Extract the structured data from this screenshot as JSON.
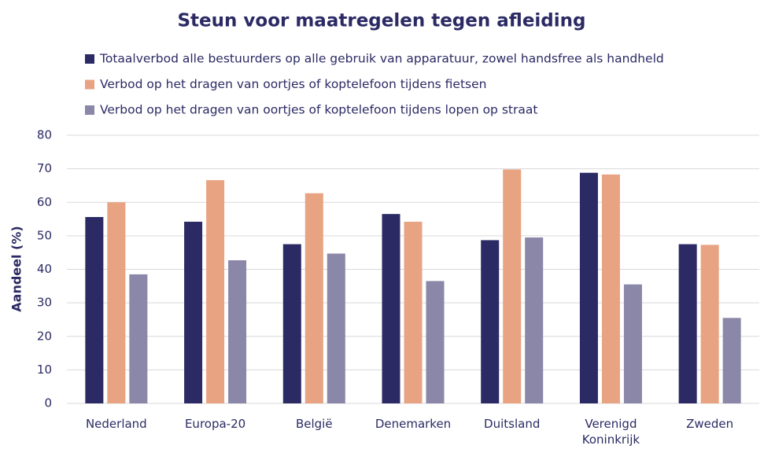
{
  "chart_data": {
    "type": "bar",
    "title": "Steun voor maatregelen tegen afleiding",
    "y_label": "Aandeel (%)",
    "categories": [
      "Nederland",
      "Europa-20",
      "België",
      "Denemarken",
      "Duitsland",
      "Verenigd Koninkrijk",
      "Zweden"
    ],
    "series": [
      {
        "name": "Totaalverbod alle bestuurders op alle gebruik van apparatuur, zowel handsfree als handheld",
        "color": "#2b2a64",
        "values": [
          55.6,
          54.2,
          47.5,
          56.5,
          48.7,
          68.8,
          47.5
        ]
      },
      {
        "name": "Verbod op het dragen van oortjes of koptelefoon tijdens fietsen",
        "color": "#e8a382",
        "values": [
          60,
          66.6,
          62.7,
          54.2,
          69.8,
          68.3,
          47.3
        ]
      },
      {
        "name": "Verbod op het dragen van oortjes of koptelefoon tijdens lopen op straat",
        "color": "#8a87a8",
        "values": [
          38.5,
          42.7,
          44.7,
          36.5,
          49.5,
          35.5,
          25.5
        ]
      }
    ],
    "ylim": [
      0,
      80
    ],
    "yticks": [
      0,
      10,
      20,
      30,
      40,
      50,
      60,
      70,
      80
    ],
    "grid": true,
    "legend": "top"
  }
}
